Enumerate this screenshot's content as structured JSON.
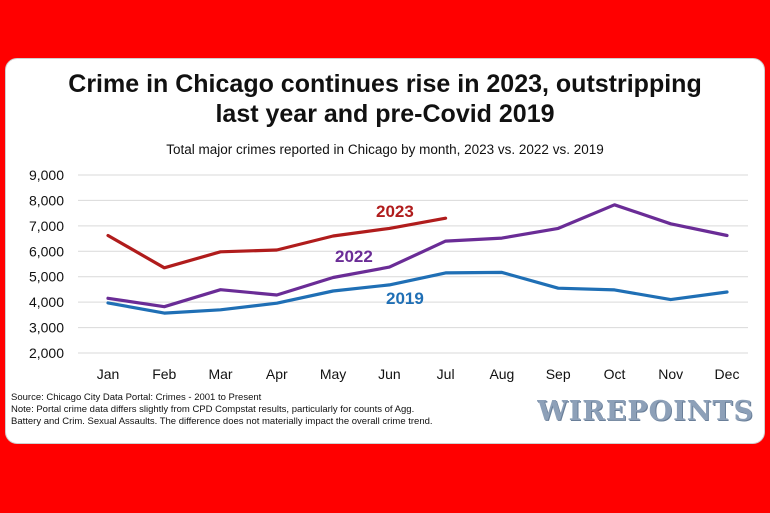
{
  "title_line1": "Crime in Chicago continues rise in 2023, outstripping",
  "title_line2": "last year and pre-Covid 2019",
  "subtitle": "Total major crimes reported in Chicago by month, 2023 vs. 2022 vs. 2019",
  "source_line1": "Source: Chicago City Data Portal: Crimes - 2001 to Present",
  "source_line2": "Note: Portal crime data differs slightly from CPD Compstat results, particularly for counts of Agg.",
  "source_line3": "Battery and Crim. Sexual Assaults. The difference does not materially impact the overall crime trend.",
  "logo_text": "WIREPOINTS",
  "colors": {
    "frame": "#ff0000",
    "y2023": "#b01c1c",
    "y2022": "#6a2c96",
    "y2019": "#1f6fb5",
    "grid": "#d9d9d9"
  },
  "chart_data": {
    "type": "line",
    "categories": [
      "Jan",
      "Feb",
      "Mar",
      "Apr",
      "May",
      "Jun",
      "Jul",
      "Aug",
      "Sep",
      "Oct",
      "Nov",
      "Dec"
    ],
    "y_ticks": [
      "2,000",
      "3,000",
      "4,000",
      "5,000",
      "6,000",
      "7,000",
      "8,000",
      "9,000"
    ],
    "ylim": [
      2000,
      9000
    ],
    "grid": true,
    "legend": "inline labels",
    "series": [
      {
        "name": "2023",
        "color": "#b01c1c",
        "values": [
          6620,
          5350,
          5980,
          6050,
          6600,
          6900,
          7300,
          null,
          null,
          null,
          null,
          null
        ]
      },
      {
        "name": "2022",
        "color": "#6a2c96",
        "values": [
          4150,
          3820,
          4490,
          4280,
          4970,
          5380,
          6400,
          6520,
          6900,
          7830,
          7080,
          6620
        ]
      },
      {
        "name": "2019",
        "color": "#1f6fb5",
        "values": [
          3970,
          3570,
          3700,
          3960,
          4440,
          4680,
          5150,
          5170,
          4550,
          4480,
          4100,
          4400
        ]
      }
    ]
  }
}
